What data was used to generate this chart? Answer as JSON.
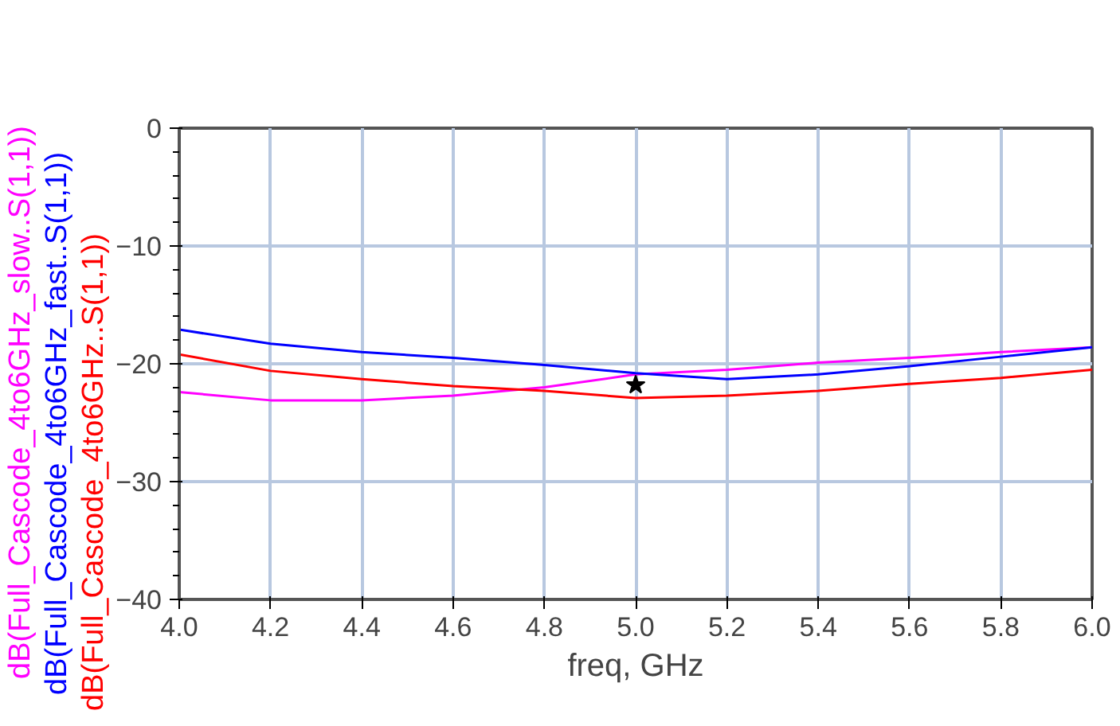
{
  "chart_data": {
    "type": "line",
    "xlabel": "freq, GHz",
    "x": [
      4.0,
      4.2,
      4.4,
      4.6,
      4.8,
      5.0,
      5.2,
      5.4,
      5.6,
      5.8,
      6.0
    ],
    "series": [
      {
        "name": "dB(Full_Cascode_4to6GHz_slow..S(1,1))",
        "color": "#ff00ff",
        "values": [
          -22.4,
          -23.1,
          -23.1,
          -22.7,
          -22.0,
          -20.9,
          -20.5,
          -19.9,
          -19.5,
          -19.0,
          -18.6
        ]
      },
      {
        "name": "dB(Full_Cascode_4to6GHz_fast..S(1,1))",
        "color": "#0000ff",
        "values": [
          -17.1,
          -18.3,
          -19.0,
          -19.5,
          -20.1,
          -20.8,
          -21.3,
          -20.9,
          -20.2,
          -19.4,
          -18.6
        ]
      },
      {
        "name": "dB(Full_Cascode_4to6GHz..S(1,1))",
        "color": "#ff0000",
        "values": [
          -19.2,
          -20.6,
          -21.3,
          -21.9,
          -22.3,
          -22.9,
          -22.7,
          -22.3,
          -21.7,
          -21.2,
          -20.5
        ]
      },
      {
        "type": "scatter",
        "color": "#000000",
        "marker": "star",
        "x": [
          5.0
        ],
        "values": [
          -21.8
        ]
      }
    ],
    "xlim": [
      4.0,
      6.0
    ],
    "ylim": [
      -40,
      0
    ],
    "xticks": [
      {
        "value": 4.0,
        "label": "4.0"
      },
      4.2,
      4.4,
      4.6,
      4.8,
      {
        "value": 5.0,
        "label": "5.0"
      },
      5.2,
      5.4,
      5.6,
      5.8,
      {
        "value": 6.0,
        "label": "6.0"
      }
    ],
    "yticks": [
      0,
      -10,
      -20,
      -30,
      -40
    ],
    "grid": true,
    "line_style": "solid"
  }
}
